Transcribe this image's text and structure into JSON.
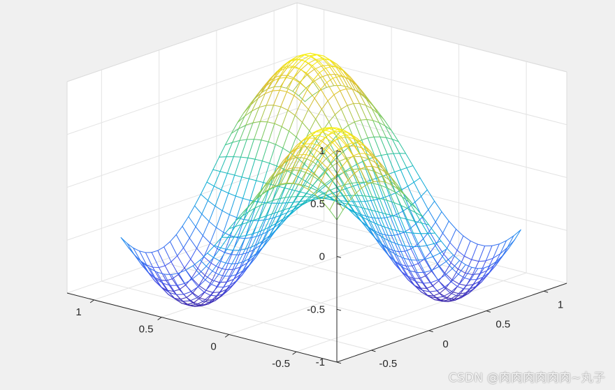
{
  "chart_data": {
    "type": "mesh",
    "function": "z = sin(pi*x) * sin(pi*y)",
    "x_range": [
      -0.8,
      0.8
    ],
    "y_range": [
      -0.8,
      0.8
    ],
    "grid_points": 31,
    "xlim": [
      -0.8,
      1.2
    ],
    "ylim": [
      -0.8,
      1.2
    ],
    "zlim": [
      -1,
      1
    ],
    "x_ticks": [
      -0.5,
      0,
      0.5,
      1
    ],
    "y_ticks": [
      -0.5,
      0,
      0.5,
      1
    ],
    "z_ticks": [
      -1,
      -0.5,
      0,
      0.5,
      1
    ],
    "x_tick_labels": [
      "-0.5",
      "0",
      "0.5",
      "1"
    ],
    "y_tick_labels": [
      "-0.5",
      "0",
      "0.5",
      "1"
    ],
    "z_tick_labels": [
      "-1",
      "-0.5",
      "0",
      "0.5",
      "1"
    ],
    "grid": true,
    "colormap": "parula",
    "title": "",
    "xlabel": "",
    "ylabel": "",
    "zlabel": ""
  },
  "watermark": "CSDN @肉肉肉肉肉肉~丸子"
}
